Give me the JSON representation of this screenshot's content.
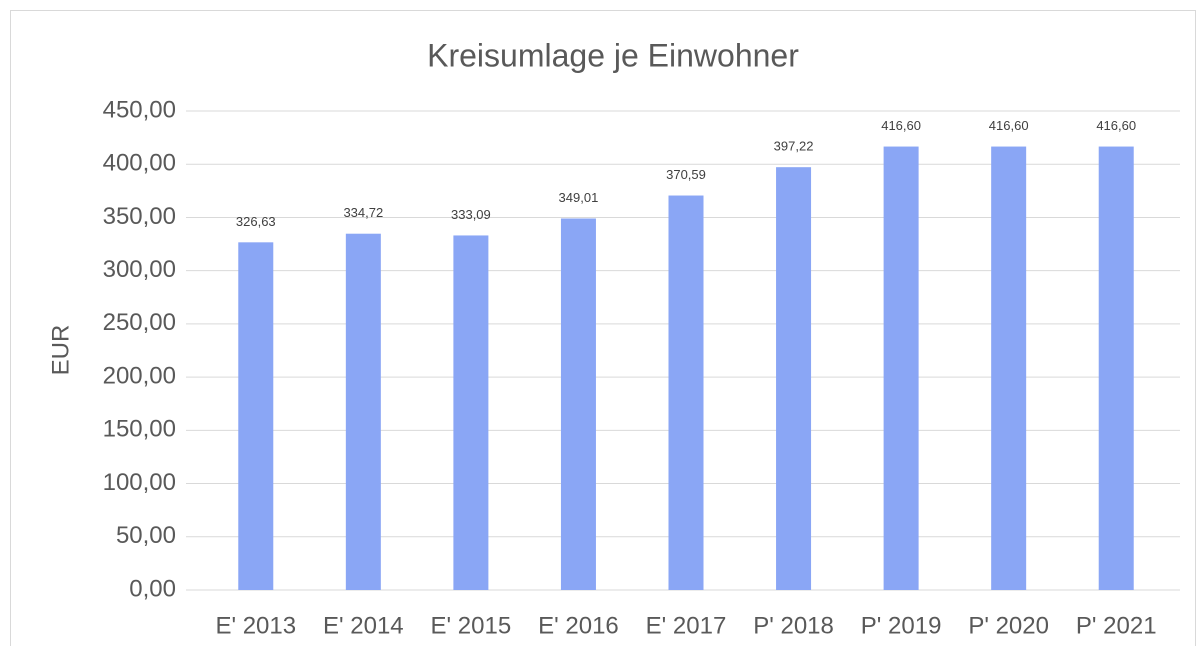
{
  "chart_data": {
    "type": "bar",
    "title": "Kreisumlage je Einwohner",
    "y_label": "EUR",
    "categories": [
      "E' 2013",
      "E' 2014",
      "E' 2015",
      "E' 2016",
      "E' 2017",
      "P' 2018",
      "P' 2019",
      "P' 2020",
      "P' 2021"
    ],
    "values": [
      326.63,
      334.72,
      333.09,
      349.01,
      370.59,
      397.22,
      416.6,
      416.6,
      416.6
    ],
    "value_labels": [
      "326,63",
      "334,72",
      "333,09",
      "349,01",
      "370,59",
      "397,22",
      "416,60",
      "416,60",
      "416,60"
    ],
    "color": "#8aa6f5",
    "ylim": [
      0,
      450
    ],
    "yticks": [
      {
        "value": 0,
        "label": "0,00"
      },
      {
        "value": 50,
        "label": "50,00"
      },
      {
        "value": 100,
        "label": "100,00"
      },
      {
        "value": 150,
        "label": "150,00"
      },
      {
        "value": 200,
        "label": "200,00"
      },
      {
        "value": 250,
        "label": "250,00"
      },
      {
        "value": 300,
        "label": "300,00"
      },
      {
        "value": 350,
        "label": "350,00"
      },
      {
        "value": 400,
        "label": "400,00"
      },
      {
        "value": 450,
        "label": "450,00"
      }
    ],
    "grid": true
  }
}
